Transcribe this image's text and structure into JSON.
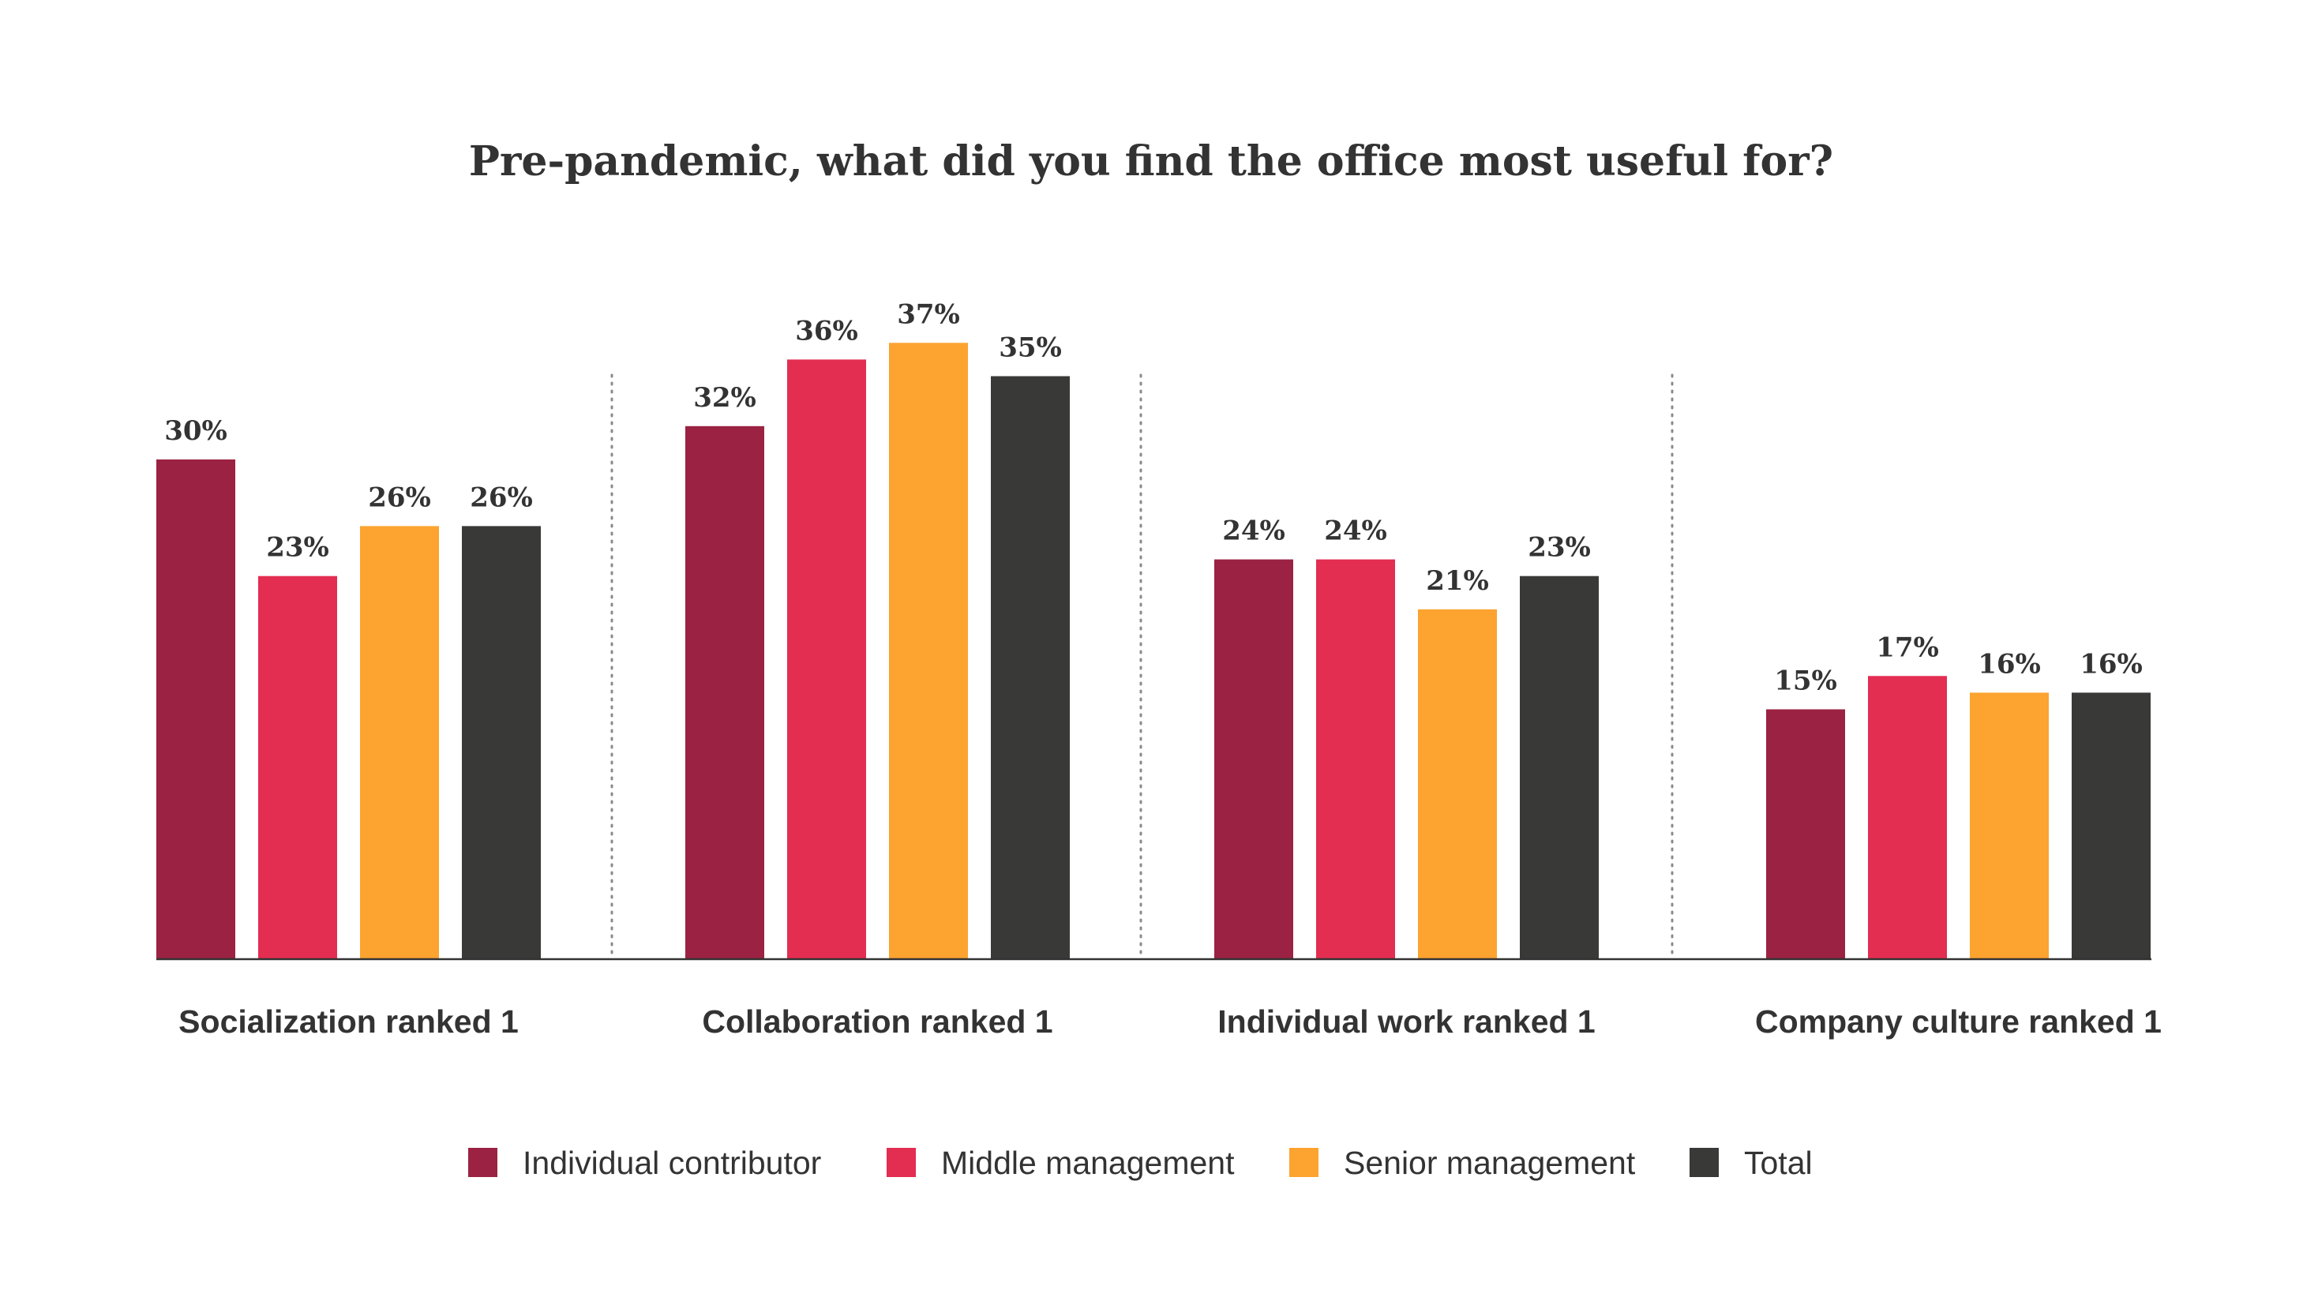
{
  "chart_data": {
    "type": "bar",
    "title": "Pre-pandemic, what did you find the office most useful for?",
    "categories": [
      "Socialization ranked 1",
      "Collaboration ranked 1",
      "Individual work ranked 1",
      "Company culture ranked 1"
    ],
    "series": [
      {
        "name": "Individual contributor",
        "color": "#9b2242",
        "values": [
          30,
          32,
          24,
          15
        ]
      },
      {
        "name": "Middle management",
        "color": "#e32d51",
        "values": [
          23,
          36,
          24,
          17
        ]
      },
      {
        "name": "Senior management",
        "color": "#fca330",
        "values": [
          26,
          37,
          21,
          16
        ]
      },
      {
        "name": "Total",
        "color": "#393937",
        "values": [
          26,
          35,
          23,
          16
        ]
      }
    ],
    "value_labels": [
      [
        "30%",
        "32%",
        "24%",
        "15%"
      ],
      [
        "23%",
        "36%",
        "24%",
        "17%"
      ],
      [
        "26%",
        "37%",
        "21%",
        "16%"
      ],
      [
        "26%",
        "35%",
        "23%",
        "16%"
      ]
    ],
    "ylim": [
      0,
      40
    ],
    "grid": false,
    "legend_position": "bottom-center",
    "separators": "dotted vertical lines between category groups"
  }
}
